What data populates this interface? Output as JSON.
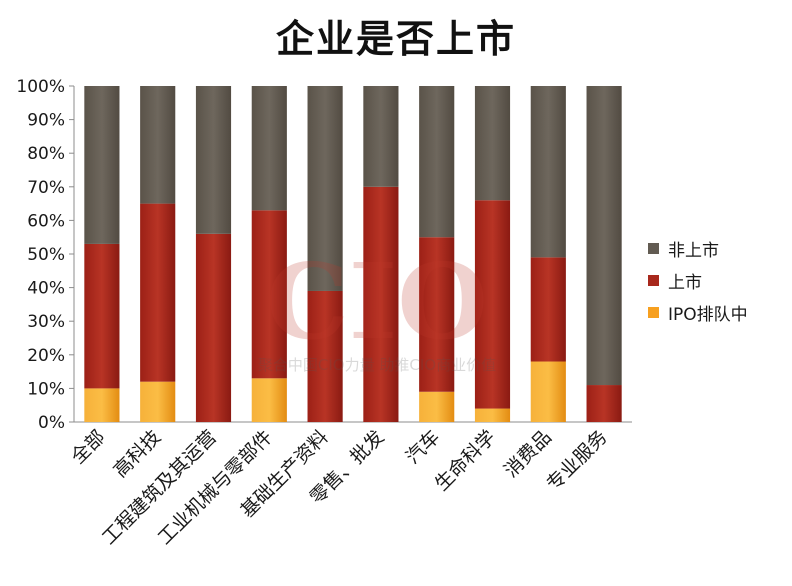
{
  "chart_data": {
    "type": "bar",
    "stacked": true,
    "title": "企业是否上市",
    "xlabel": "",
    "ylabel": "",
    "ylim": [
      0,
      100
    ],
    "yticks": [
      "0%",
      "10%",
      "20%",
      "30%",
      "40%",
      "50%",
      "60%",
      "70%",
      "80%",
      "90%",
      "100%"
    ],
    "categories": [
      "全部",
      "高科技",
      "工程建筑及其运营",
      "工业机械与零部件",
      "基础生产资料",
      "零售、批发",
      "汽车",
      "生命科学",
      "消费品",
      "专业服务"
    ],
    "series": [
      {
        "name": "IPO排队中",
        "color": "#f7a020",
        "values": [
          10,
          12,
          0,
          13,
          0,
          0,
          9,
          4,
          18,
          0
        ]
      },
      {
        "name": "上市",
        "color": "#a8281c",
        "values": [
          43,
          53,
          56,
          50,
          39,
          70,
          46,
          62,
          31,
          11
        ]
      },
      {
        "name": "非上市",
        "color": "#625b52",
        "values": [
          47,
          35,
          44,
          37,
          61,
          30,
          45,
          34,
          51,
          89
        ]
      }
    ],
    "legend_position": "right",
    "legend_order": [
      "非上市",
      "上市",
      "IPO排队中"
    ],
    "grid": false
  },
  "watermark": {
    "logo_text": "CIO",
    "tagline": "聚合中国CIO力量  助推CIO商业价值"
  }
}
